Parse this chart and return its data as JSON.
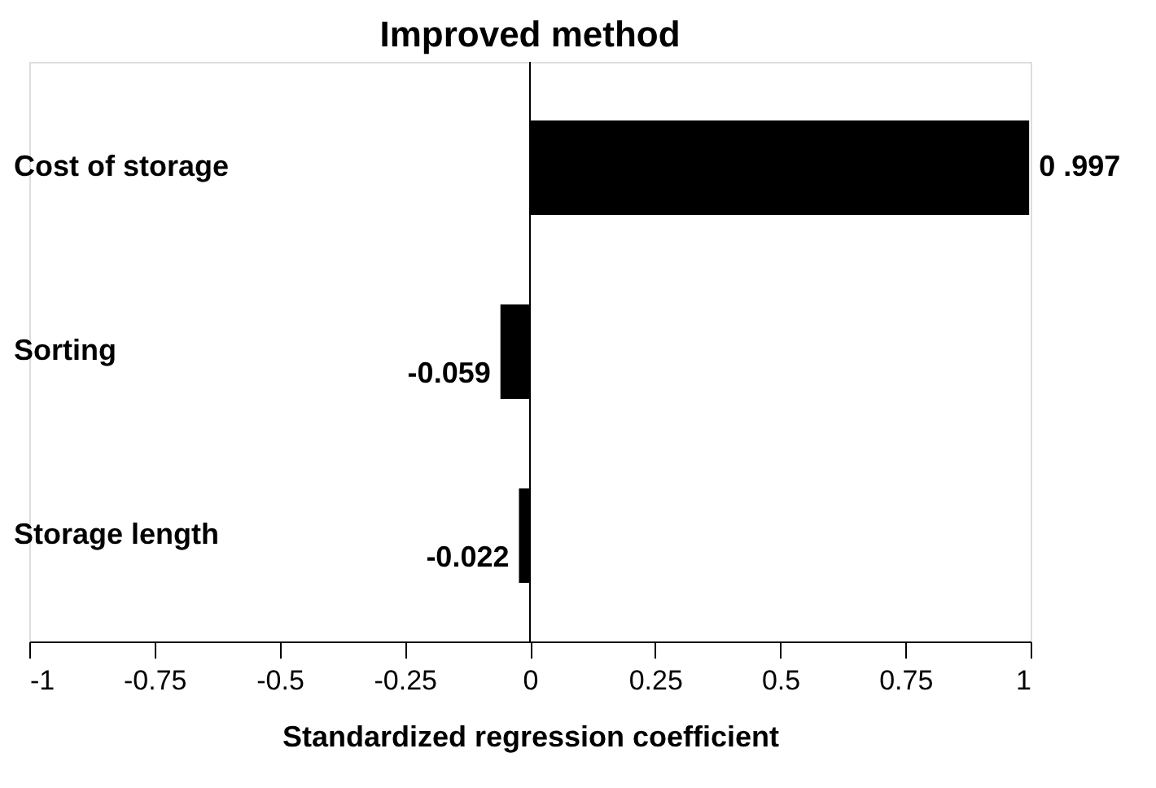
{
  "chart_data": {
    "type": "bar",
    "orientation": "horizontal",
    "title": "Improved method",
    "xlabel": "Standardized regression coefficient",
    "categories": [
      "Cost of storage",
      "Sorting",
      "Storage length"
    ],
    "values": [
      0.997,
      -0.059,
      -0.022
    ],
    "value_labels": [
      "0 .997",
      "-0.059",
      "-0.022"
    ],
    "color": "#000000",
    "xlim": [
      -1,
      1
    ],
    "xticks": [
      -1,
      -0.75,
      -0.5,
      -0.25,
      0,
      0.25,
      0.5,
      0.75,
      1
    ],
    "ref_lines": [
      {
        "axis": "x",
        "value": 0,
        "color": "#000000"
      }
    ],
    "grid": false
  }
}
